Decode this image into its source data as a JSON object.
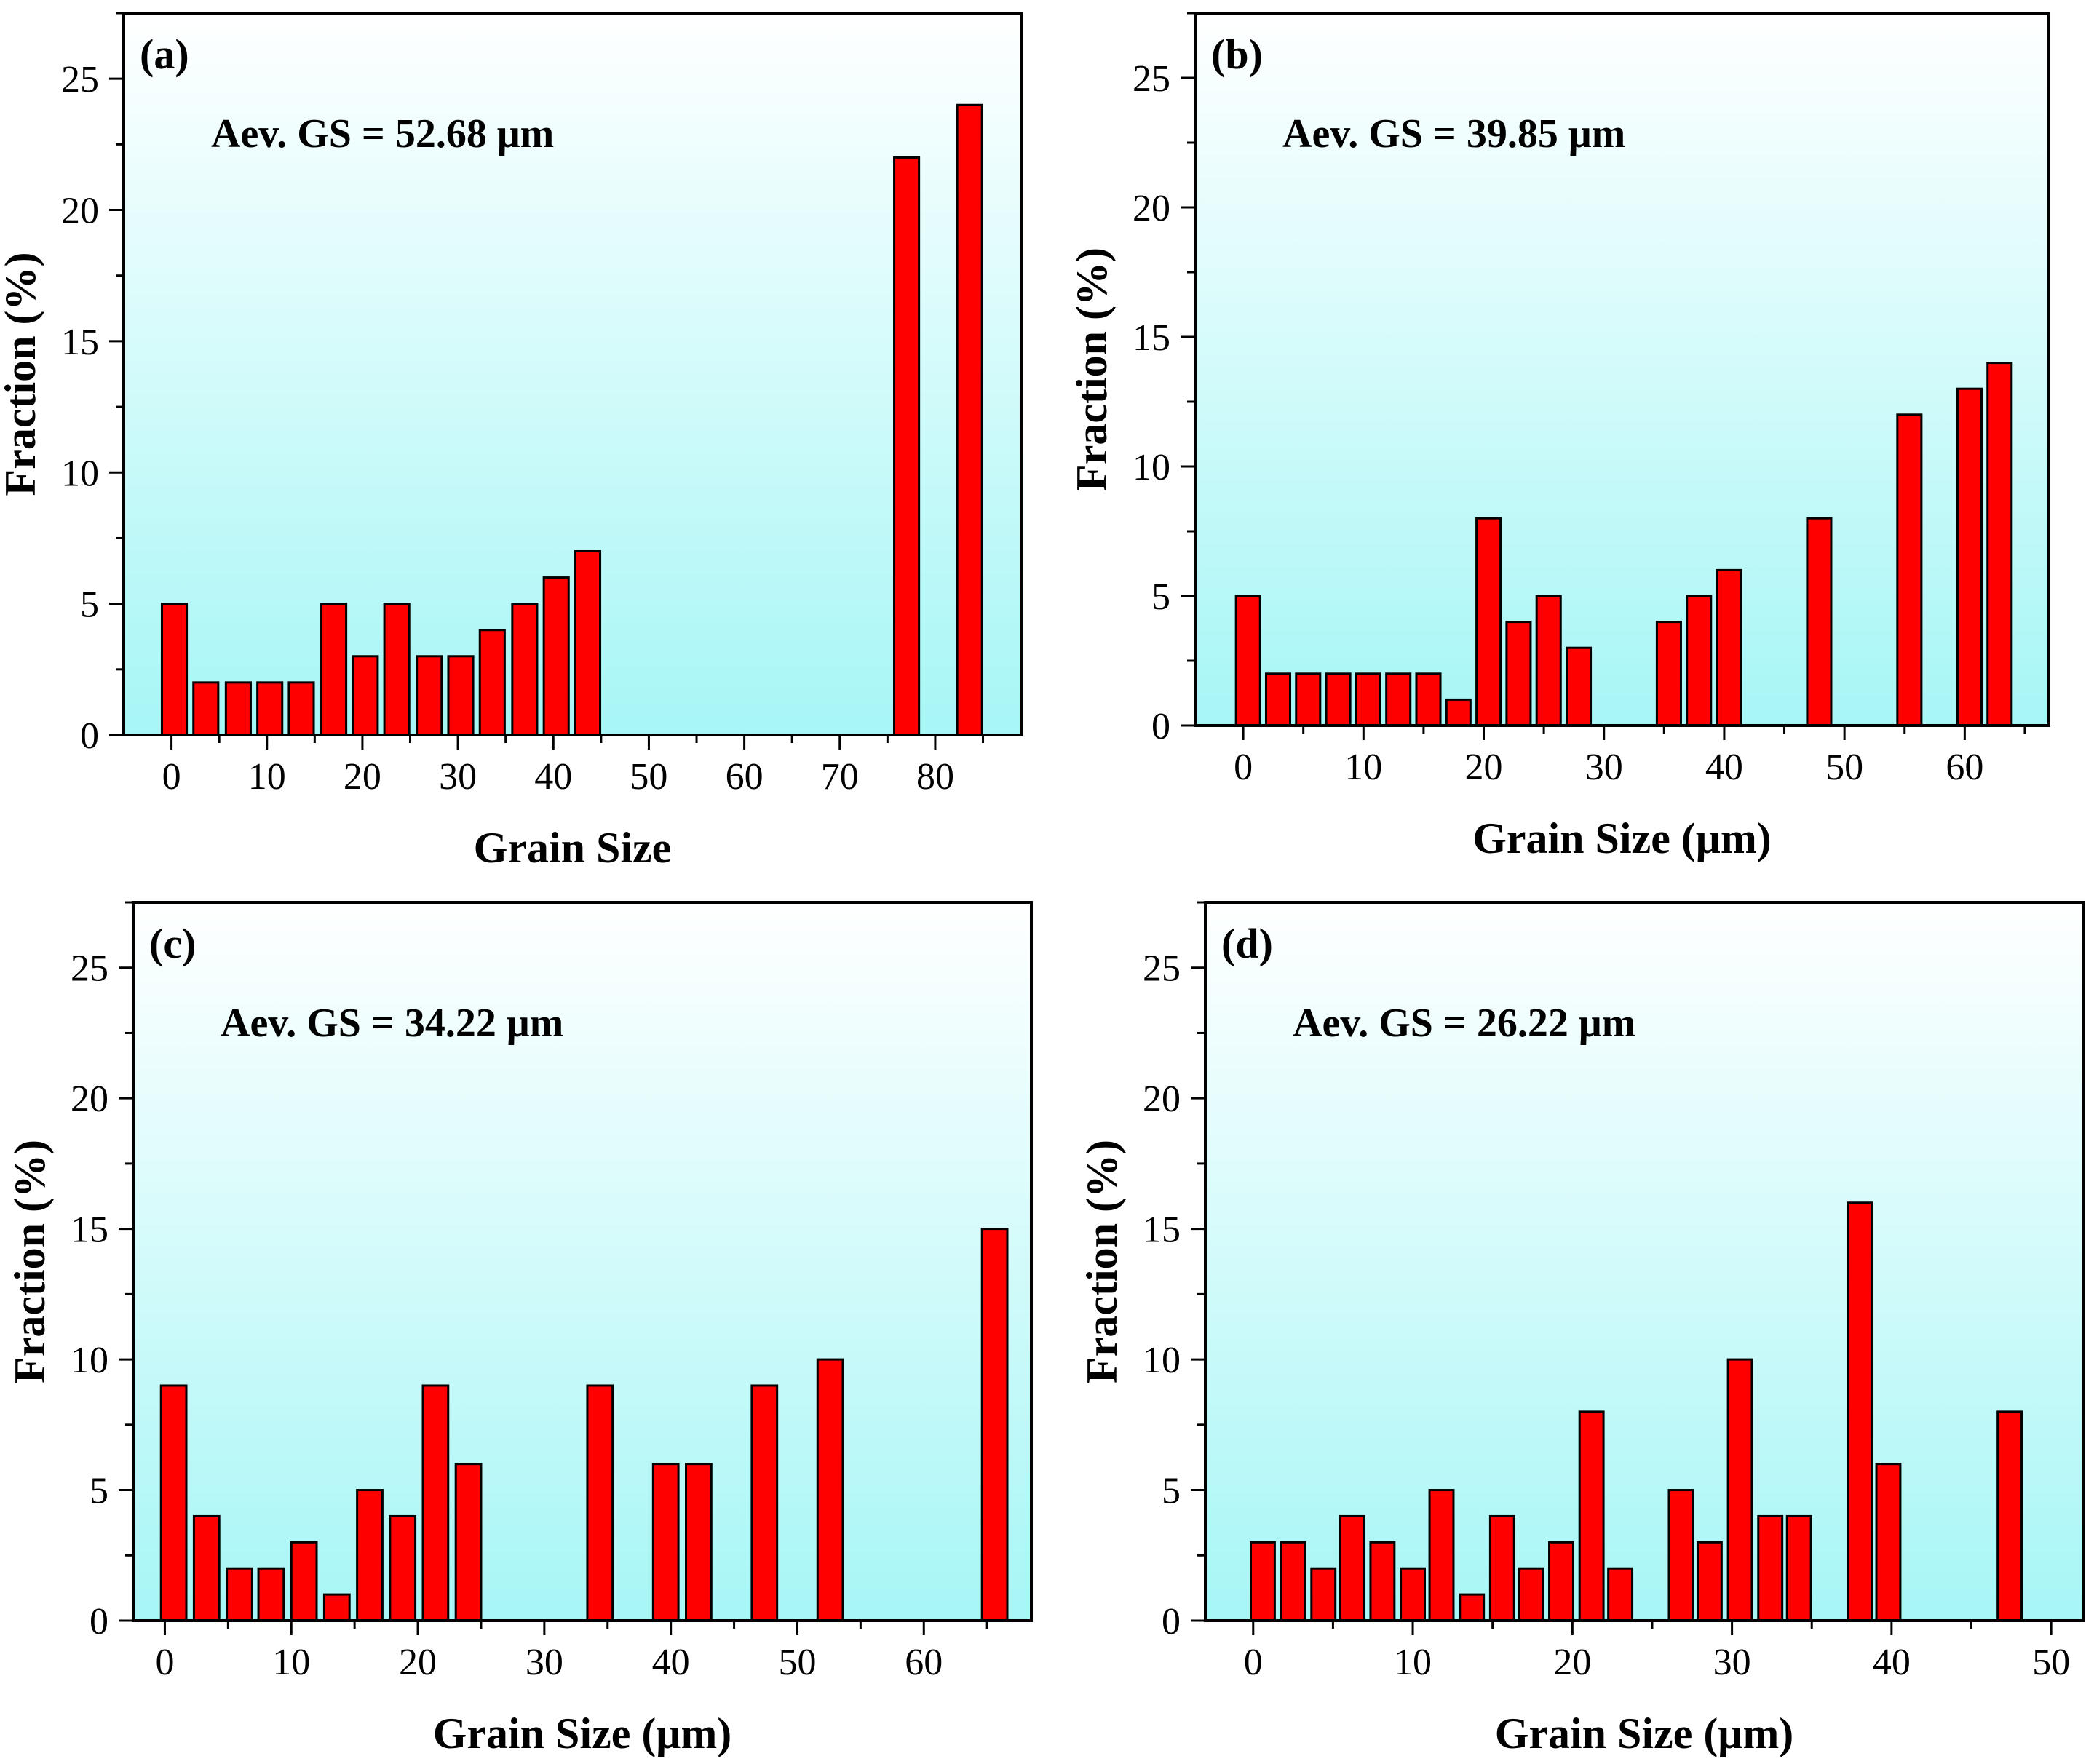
{
  "chart_data": [
    {
      "type": "bar",
      "panel_label": "(a)",
      "annotation": "Aev. GS = 52.68 μm",
      "xlabel": "Grain Size",
      "ylabel": "Fraction (%)",
      "xlim": [
        -5,
        89
      ],
      "ylim": [
        0,
        27.5
      ],
      "xticks": [
        0,
        10,
        20,
        30,
        40,
        50,
        60,
        70,
        80
      ],
      "yticks": [
        0,
        5,
        10,
        15,
        20,
        25
      ],
      "bar_width": 2.6,
      "x": [
        0.3,
        3.6,
        7.0,
        10.3,
        13.6,
        17.0,
        20.3,
        23.6,
        27.0,
        30.3,
        33.6,
        37.0,
        40.3,
        43.6,
        77.0,
        83.6
      ],
      "values": [
        5,
        2,
        2,
        2,
        2,
        5,
        3,
        5,
        3,
        3,
        4,
        5,
        6,
        7,
        22,
        24
      ],
      "color": "#ff0000"
    },
    {
      "type": "bar",
      "panel_label": "(b)",
      "annotation": "Aev. GS = 39.85 μm",
      "xlabel": "Grain Size (μm)",
      "ylabel": "Fraction (%)",
      "xlim": [
        -4,
        67
      ],
      "ylim": [
        0,
        27.5
      ],
      "xticks": [
        0,
        10,
        20,
        30,
        40,
        50,
        60
      ],
      "yticks": [
        0,
        5,
        10,
        15,
        20,
        25
      ],
      "bar_width": 2.0,
      "x": [
        0.4,
        2.9,
        5.4,
        7.9,
        10.4,
        12.9,
        15.4,
        17.9,
        20.4,
        22.9,
        25.4,
        27.9,
        35.4,
        37.9,
        40.4,
        47.9,
        55.4,
        60.4,
        62.9
      ],
      "values": [
        5,
        2,
        2,
        2,
        2,
        2,
        2,
        1,
        8,
        4,
        5,
        3,
        4,
        5,
        6,
        8,
        12,
        13,
        14
      ],
      "color": "#ff0000"
    },
    {
      "type": "bar",
      "panel_label": "(c)",
      "annotation": "Aev. GS = 34.22 μm",
      "xlabel": "Grain Size (μm)",
      "ylabel": "Fraction (%)",
      "xlim": [
        -2.5,
        68.5
      ],
      "ylim": [
        0,
        27.5
      ],
      "xticks": [
        0,
        10,
        20,
        30,
        40,
        50,
        60
      ],
      "yticks": [
        0,
        5,
        10,
        15,
        20,
        25
      ],
      "bar_width": 2.0,
      "x": [
        0.7,
        3.3,
        5.9,
        8.4,
        11.0,
        13.6,
        16.2,
        18.8,
        21.4,
        24.0,
        34.4,
        39.6,
        42.2,
        47.4,
        52.6,
        65.6
      ],
      "values": [
        9,
        4,
        2,
        2,
        3,
        1,
        5,
        4,
        9,
        6,
        9,
        6,
        6,
        9,
        10,
        15
      ],
      "color": "#ff0000"
    },
    {
      "type": "bar",
      "panel_label": "(d)",
      "annotation": "Aev. GS = 26.22 μm",
      "xlabel": "Grain Size (μm)",
      "ylabel": "Fraction (%)",
      "xlim": [
        -3,
        52
      ],
      "ylim": [
        0,
        27.5
      ],
      "xticks": [
        0,
        10,
        20,
        30,
        40,
        50
      ],
      "yticks": [
        0,
        5,
        10,
        15,
        20,
        25
      ],
      "bar_width": 1.5,
      "x": [
        0.6,
        2.5,
        4.4,
        6.2,
        8.1,
        10.0,
        11.8,
        13.7,
        15.6,
        17.4,
        19.3,
        21.2,
        23.0,
        26.8,
        28.6,
        30.5,
        32.4,
        34.2,
        38.0,
        39.8,
        47.4
      ],
      "values": [
        3,
        3,
        2,
        4,
        3,
        2,
        5,
        1,
        4,
        2,
        3,
        8,
        2,
        5,
        3,
        10,
        4,
        4,
        16,
        6,
        8
      ],
      "color": "#ff0000"
    }
  ]
}
